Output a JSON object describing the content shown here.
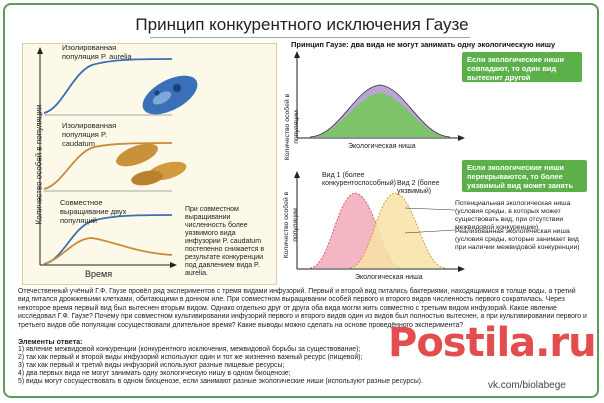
{
  "title": "Принцип конкурентного исключения Гаузе",
  "left": {
    "y_axis": "Количество особей в популяции",
    "x_axis": "Время",
    "panel1_label": "Изолированная популяция P. aurelia",
    "panel2_label": "Изолированная популяция P. caudatum",
    "panel3_label": "Совместное выращивание двух популяций",
    "side_text": "При совместном выращивании численность более уязвимого вида инфузории P. caudatum постепенно снижается в результате конкуренции под давлением вида P. aurelia."
  },
  "right": {
    "heading": "Принцип Гаузе: два вида не могут занимать одну экологическую нишу",
    "y_axis_top": "Количество особей в популяции",
    "x_axis_top": "Экологическая ниша",
    "box1": "Если экологические ниши совпадают, то один вид вытеснит другой",
    "y_axis_bottom": "Количество особей в популяции",
    "x_axis_bottom": "Экологическая ниша",
    "box2": "Если экологические ниши перекрываются, то более уязвимый вид может занять другую нишу",
    "species1": "Вид 1 (более конкурентоспособный)",
    "species2": "Вид 2 (более уязвимый)",
    "potential": "Потенциальная экологическая ниша (условия среды, в которых может существовать вид, при отсутствии межвидовой конкуренции)",
    "realized": "Реализованная экологическая ниша (условия среды, которые занимает вид при наличии межвидовой конкуренции)"
  },
  "paragraph": "Отечественный учёный Г.Ф. Гаузе провёл ряд экспериментов с тремя видами инфузорий. Первый и второй вид питались бактериями, находящимися в толще воды, а третий вид питался дрожжевыми клетками, обитающими в донном иле. При совместном выращивании особей первого и второго видов численность первого сократилась. Через некоторое время первый вид был вытеснен вторым видом. Однако отдельно друг от друга оба вида могли жить совместно с третьим видом инфузорий. Какое явление исследовал Г.Ф. Гаузе? Почему при совместном культивировании инфузорий первого и второго видов один из видов был полностью вытеснен, а при культивировании первого и третьего видов обе популяции сосуществовали длительное время? Какие выводы можно сделать на основе проведённого эксперимента?",
  "answers_title": "Элементы ответа:",
  "answers": [
    "1) явление межвидовой конкуренции (конкурентного исключения, межвидовой борьбы за существование);",
    "2) так как первый и второй виды инфузорий используют один и тот же жизненно важный ресурс (пищевой);",
    "3) так как первый и третий виды инфузорий используют разные пищевые ресурсы;",
    "4) два первых вида не могут занимать одну экологическую нишу в одном биоценозе;",
    "5) виды могут сосуществовать в одном биоценозе, если занимают разные экологические ниши (используют разные ресурсы)."
  ],
  "watermark": "Postila.ru",
  "vk": "vk.com/biolabege",
  "colors": {
    "frame": "#5a9c58",
    "green_box": "#5bb04a",
    "curve_blue": "#3a6fb5",
    "curve_orange": "#c98b3a",
    "pink": "#f4b6c2",
    "yellow": "#f7e3a4",
    "purple": "#a187c4",
    "green": "#7cc36a"
  }
}
